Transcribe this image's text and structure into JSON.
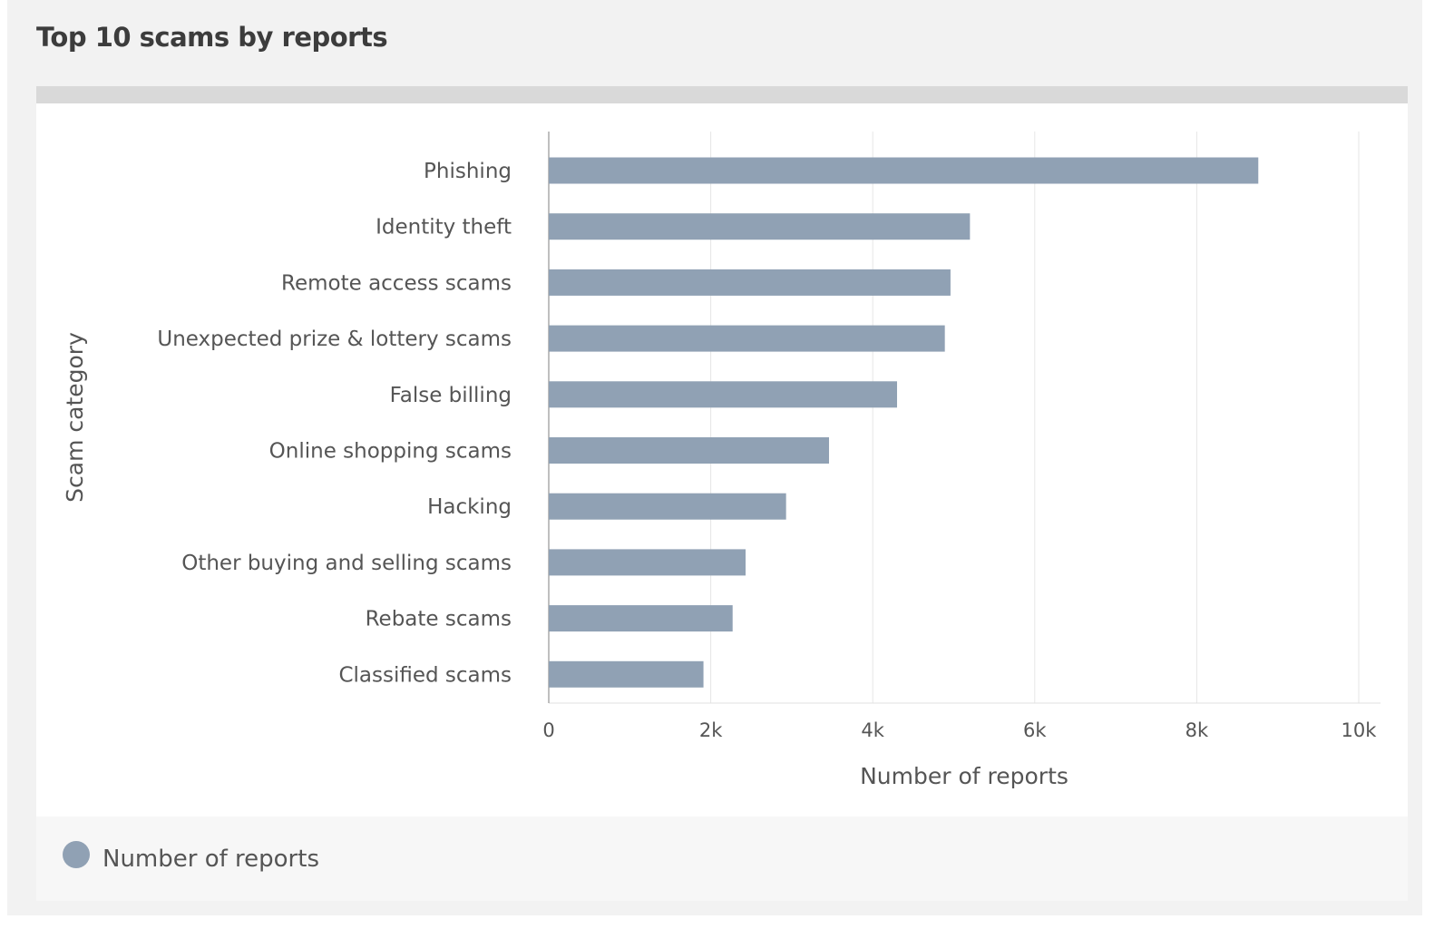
{
  "title": "Top 10 scams by reports",
  "chart_data": {
    "type": "bar",
    "orientation": "horizontal",
    "categories": [
      "Phishing",
      "Identity theft",
      "Remote access scams",
      "Unexpected prize & lottery scams",
      "False billing",
      "Online shopping scams",
      "Hacking",
      "Other buying and selling scams",
      "Rebate scams",
      "Classified scams"
    ],
    "series": [
      {
        "name": "Number of reports",
        "values": [
          8760,
          5200,
          4960,
          4890,
          4300,
          3460,
          2930,
          2430,
          2270,
          1910
        ],
        "color": "#90a1b4"
      }
    ],
    "xlabel": "Number of reports",
    "ylabel": "Scam category",
    "xlim": [
      0,
      10000
    ],
    "xticks": [
      0,
      2000,
      4000,
      6000,
      8000,
      10000
    ],
    "xtick_labels": [
      "0",
      "2k",
      "4k",
      "6k",
      "8k",
      "10k"
    ],
    "grid": true,
    "legend": "bottom-left"
  }
}
